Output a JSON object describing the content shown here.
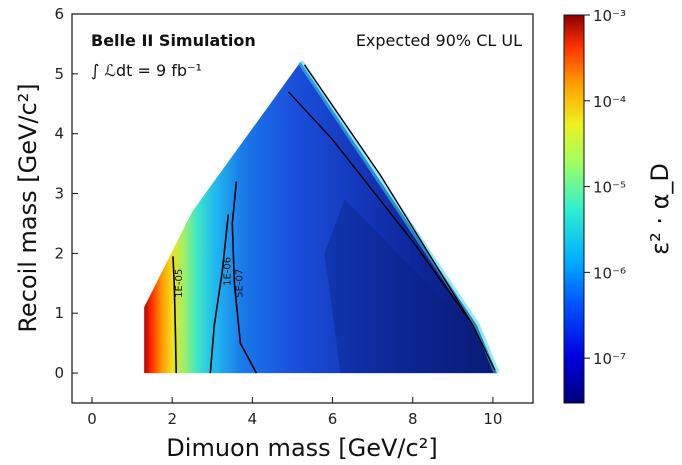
{
  "chart_data": {
    "type": "heatmap",
    "xlabel": "Dimuon mass [GeV/c²]",
    "ylabel": "Recoil mass [GeV/c²]",
    "xlim": [
      -0.5,
      11
    ],
    "ylim": [
      -0.5,
      6
    ],
    "xticks": [
      "0",
      "2",
      "4",
      "6",
      "8",
      "10"
    ],
    "yticks": [
      "0",
      "1",
      "2",
      "3",
      "4",
      "5",
      "6"
    ],
    "annotations": {
      "experiment": "Belle II Simulation",
      "luminosity": "∫ ℒdt = 9 fb⁻¹",
      "result": "Expected 90% CL UL"
    },
    "colorbar": {
      "label": "ε² · α_D",
      "scale": "log",
      "range": [
        3e-08,
        0.001
      ],
      "ticks": [
        "10⁻³",
        "10⁻⁴",
        "10⁻⁵",
        "10⁻⁶",
        "10⁻⁷"
      ],
      "colormap": "jet"
    },
    "allowed_region": [
      [
        1.3,
        0
      ],
      [
        10.1,
        0
      ],
      [
        9.6,
        0.8
      ],
      [
        5.2,
        5.2
      ],
      [
        2.5,
        2.7
      ],
      [
        1.3,
        1.1
      ]
    ],
    "contours": [
      {
        "label": "1E-05",
        "value": 1e-05,
        "points": [
          [
            2.1,
            0
          ],
          [
            2.08,
            0.7
          ],
          [
            2.05,
            1.5
          ],
          [
            2.02,
            1.95
          ]
        ]
      },
      {
        "label": "1E-06",
        "value": 1e-06,
        "points": [
          [
            2.95,
            0
          ],
          [
            3.05,
            0.8
          ],
          [
            3.25,
            1.7
          ],
          [
            3.4,
            2.65
          ]
        ]
      },
      {
        "label": "5E-07",
        "value": 5e-07,
        "points": [
          [
            4.1,
            0
          ],
          [
            3.7,
            0.5
          ],
          [
            3.55,
            1.5
          ],
          [
            3.5,
            2.5
          ],
          [
            3.6,
            3.2
          ]
        ]
      }
    ],
    "grid": false
  },
  "colors": {
    "axis": "#111111",
    "contour": "#000000"
  }
}
